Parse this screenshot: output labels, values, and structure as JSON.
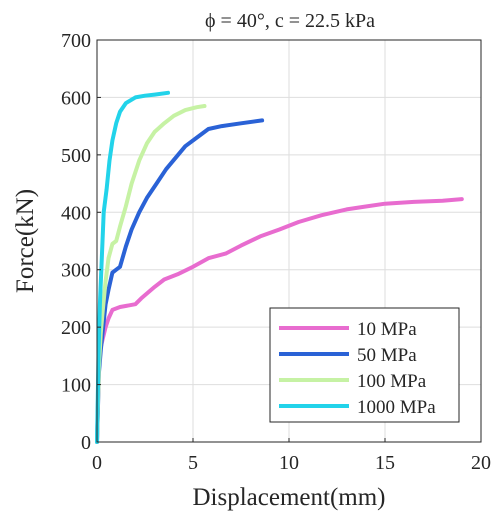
{
  "chart_data": {
    "type": "line",
    "title": "ϕ = 40°, c = 22.5 kPa",
    "xlabel": "Displacement(mm)",
    "ylabel": "Force(kN)",
    "xlim": [
      0,
      20
    ],
    "ylim": [
      0,
      700
    ],
    "xticks": [
      "0",
      "5",
      "10",
      "15",
      "20"
    ],
    "yticks": [
      "0",
      "100",
      "200",
      "300",
      "400",
      "500",
      "600",
      "700"
    ],
    "grid": true,
    "legend_position": "bottom-right",
    "series": [
      {
        "name": "10 MPa",
        "color": "#e86ccf",
        "x": [
          0,
          0.1,
          0.2,
          0.3,
          0.45,
          0.6,
          0.8,
          1.2,
          2.0,
          2.3,
          3.0,
          3.5,
          4.2,
          5.0,
          5.8,
          6.7,
          7.5,
          8.5,
          9.5,
          10.5,
          11.7,
          13.0,
          14.0,
          15.0,
          16.5,
          18.0,
          19.0
        ],
        "y": [
          0,
          140,
          165,
          180,
          200,
          215,
          230,
          235,
          240,
          250,
          270,
          283,
          292,
          305,
          320,
          328,
          342,
          358,
          370,
          383,
          395,
          405,
          410,
          415,
          418,
          420,
          423
        ]
      },
      {
        "name": "50 MPa",
        "color": "#2a62d6",
        "x": [
          0,
          0.1,
          0.2,
          0.3,
          0.45,
          0.6,
          0.8,
          1.0,
          1.2,
          1.5,
          1.8,
          2.2,
          2.6,
          3.1,
          3.6,
          4.1,
          4.6,
          5.2,
          5.8,
          6.5,
          7.5,
          8.6
        ],
        "y": [
          0,
          120,
          160,
          195,
          240,
          265,
          295,
          300,
          305,
          340,
          370,
          400,
          425,
          450,
          475,
          495,
          515,
          530,
          545,
          550,
          555,
          560
        ]
      },
      {
        "name": "100 MPa",
        "color": "#c6f2a4",
        "x": [
          0,
          0.1,
          0.2,
          0.3,
          0.45,
          0.6,
          0.8,
          1.0,
          1.2,
          1.5,
          1.8,
          2.2,
          2.6,
          3.0,
          3.5,
          4.0,
          4.6,
          5.2,
          5.6
        ],
        "y": [
          0,
          130,
          190,
          230,
          280,
          320,
          345,
          350,
          375,
          410,
          450,
          490,
          520,
          540,
          555,
          568,
          578,
          583,
          585
        ]
      },
      {
        "name": "1000 MPa",
        "color": "#22d3ea",
        "x": [
          0,
          0.08,
          0.15,
          0.25,
          0.35,
          0.5,
          0.65,
          0.8,
          1.0,
          1.2,
          1.5,
          2.0,
          2.5,
          3.0,
          3.7
        ],
        "y": [
          0,
          150,
          240,
          320,
          400,
          440,
          490,
          525,
          555,
          575,
          590,
          600,
          603,
          605,
          608
        ]
      }
    ]
  }
}
